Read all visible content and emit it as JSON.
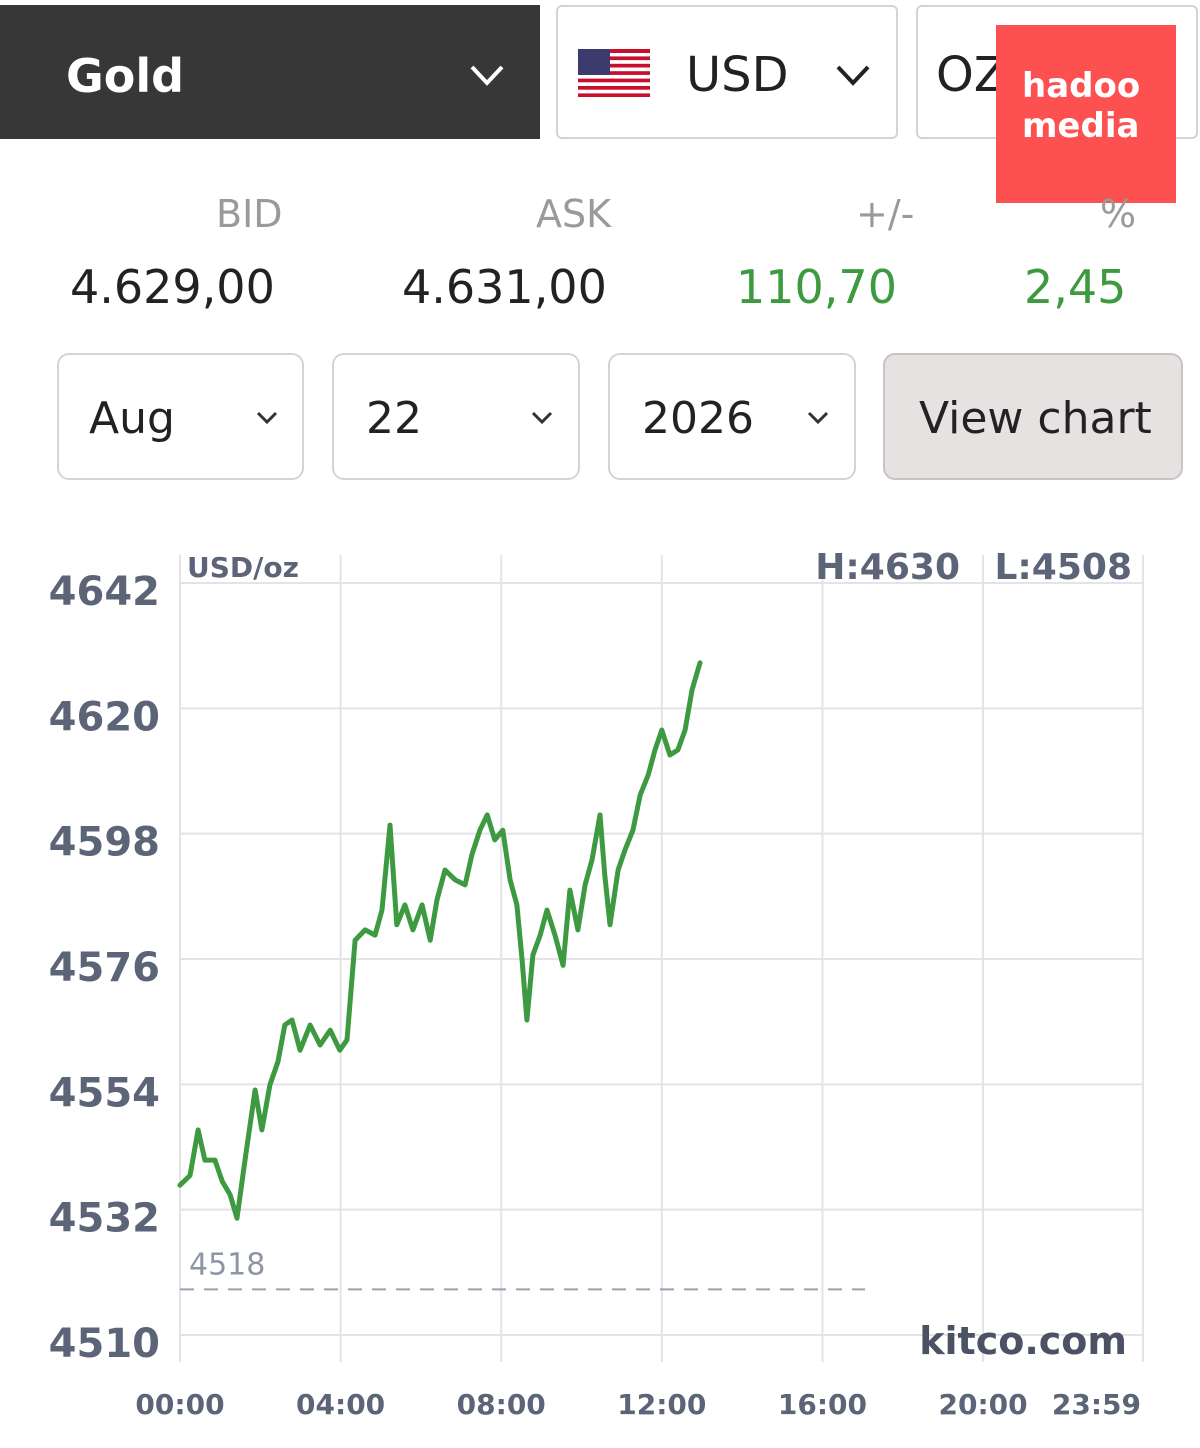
{
  "header": {
    "metal": "Gold",
    "currency": "USD",
    "unit": "OZ",
    "watermark": [
      "hadoo",
      "media"
    ]
  },
  "quote": {
    "labels": [
      "BID",
      "ASK",
      "+/-",
      "%"
    ],
    "values": [
      "4.629,00",
      "4.631,00",
      "110,70",
      "2,45"
    ]
  },
  "date_selector": {
    "month": "Aug",
    "day": "22",
    "year": "2026",
    "button": "View chart"
  },
  "chart_data": {
    "type": "line",
    "unit_label": "USD/oz",
    "high_label": "H:4630",
    "low_label": "L:4508",
    "source": "kitco.com",
    "reference_line": 4518,
    "color": "#3d9a40",
    "grid": true,
    "xlim": [
      0,
      23.983
    ],
    "ylim": [
      4510,
      4642
    ],
    "xticks": [
      {
        "value": 0,
        "label": "00:00"
      },
      {
        "value": 4,
        "label": "04:00"
      },
      {
        "value": 8,
        "label": "08:00"
      },
      {
        "value": 12,
        "label": "12:00"
      },
      {
        "value": 16,
        "label": "16:00"
      },
      {
        "value": 20,
        "label": "20:00"
      },
      {
        "value": 23.983,
        "label": "23:59"
      }
    ],
    "yticks": [
      4510,
      4532,
      4554,
      4576,
      4598,
      4620,
      4642
    ],
    "x": [
      0,
      0.25,
      0.45,
      0.62,
      0.87,
      1.05,
      1.25,
      1.42,
      1.62,
      1.87,
      2.04,
      2.24,
      2.44,
      2.61,
      2.79,
      2.99,
      3.24,
      3.49,
      3.74,
      3.98,
      4.16,
      4.36,
      4.61,
      4.86,
      5.03,
      5.23,
      5.4,
      5.6,
      5.8,
      6.03,
      6.23,
      6.4,
      6.6,
      6.85,
      7.1,
      7.27,
      7.47,
      7.65,
      7.84,
      8.04,
      8.22,
      8.39,
      8.52,
      8.64,
      8.79,
      8.97,
      9.14,
      9.34,
      9.54,
      9.71,
      9.91,
      10.09,
      10.26,
      10.46,
      10.58,
      10.71,
      10.91,
      11.08,
      11.28,
      11.46,
      11.66,
      11.83,
      12.0,
      12.2,
      12.4,
      12.58,
      12.75,
      12.95
    ],
    "values": [
      4536.3,
      4538,
      4546,
      4540.7,
      4540.7,
      4537,
      4534.6,
      4530.5,
      4540.7,
      4553,
      4546,
      4553.9,
      4558,
      4564.4,
      4565.3,
      4560,
      4564.4,
      4560.9,
      4563.5,
      4560,
      4561.8,
      4579.3,
      4581.1,
      4580.2,
      4584.6,
      4599.5,
      4582,
      4585.5,
      4581.1,
      4585.5,
      4579.3,
      4586.4,
      4591.6,
      4589.9,
      4589,
      4594.3,
      4598.6,
      4601.3,
      4596.9,
      4598.6,
      4589.9,
      4585.5,
      4575.8,
      4565.3,
      4576.7,
      4580.2,
      4584.6,
      4580.2,
      4574.9,
      4588.1,
      4581.1,
      4589,
      4593.4,
      4601.3,
      4590.7,
      4582,
      4591.6,
      4595.1,
      4598.6,
      4604.8,
      4608.3,
      4612.7,
      4616.2,
      4611.8,
      4612.7,
      4616.2,
      4623.2,
      4628
    ]
  }
}
